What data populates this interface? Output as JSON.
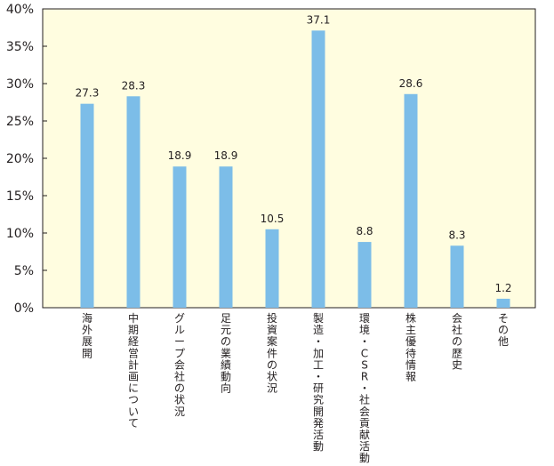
{
  "chart_data": {
    "type": "bar",
    "categories": [
      "海外展開",
      "中期経営計画について",
      "グループ会社の状況",
      "足元の業績動向",
      "投資案件の状況",
      "製造・加工・研究開発活動",
      "環境・CSR・社会貢献活動",
      "株主優待情報",
      "会社の歴史",
      "その他"
    ],
    "values": [
      27.3,
      28.3,
      18.9,
      18.9,
      10.5,
      37.1,
      8.8,
      28.6,
      8.3,
      1.2
    ],
    "value_labels": [
      "27.3",
      "28.3",
      "18.9",
      "18.9",
      "10.5",
      "37.1",
      "8.8",
      "28.6",
      "8.3",
      "1.2"
    ],
    "y_ticks": [
      0,
      5,
      10,
      15,
      20,
      25,
      30,
      35,
      40
    ],
    "y_tick_labels": [
      "0%",
      "5%",
      "10%",
      "15%",
      "20%",
      "25%",
      "30%",
      "35%",
      "40%"
    ],
    "ylim": [
      0,
      40
    ],
    "title": "",
    "xlabel": "",
    "ylabel": "",
    "grid": false,
    "legend": "none",
    "colors": {
      "bar": "#7cbde8",
      "plot_background": "#fffde0",
      "axis": "#231f20"
    }
  }
}
